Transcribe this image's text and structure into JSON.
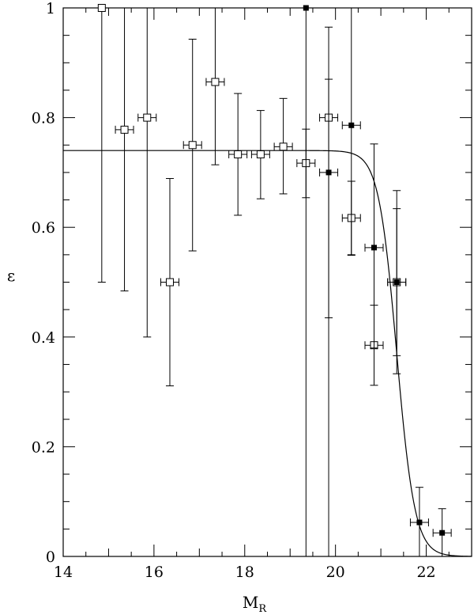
{
  "chart_data": {
    "type": "scatter",
    "title": "",
    "xlabel": "M",
    "xlabel_sub": "R",
    "ylabel": "ε",
    "xlim": [
      14,
      23
    ],
    "ylim": [
      0,
      1
    ],
    "xticks_major": [
      14,
      16,
      18,
      20,
      22
    ],
    "xtick_labels": [
      "14",
      "16",
      "18",
      "20",
      "22"
    ],
    "yticks_major": [
      0,
      0.2,
      0.4,
      0.6,
      0.8,
      1
    ],
    "ytick_labels": [
      "0",
      "0.2",
      "0.4",
      "0.6",
      "0.8",
      "1"
    ],
    "grid": false,
    "legend": "none",
    "series": [
      {
        "marker": "open-square",
        "points": [
          {
            "x": 14.85,
            "y": 1.0,
            "ylo": 0.5,
            "yhi": 1.0,
            "xerr": 0.0
          },
          {
            "x": 15.35,
            "y": 0.778,
            "ylo": 0.484,
            "yhi": 1.0,
            "xerr": 0.2
          },
          {
            "x": 15.85,
            "y": 0.8,
            "ylo": 0.4,
            "yhi": 1.0,
            "xerr": 0.2
          },
          {
            "x": 16.35,
            "y": 0.5,
            "ylo": 0.311,
            "yhi": 0.689,
            "xerr": 0.2
          },
          {
            "x": 16.85,
            "y": 0.75,
            "ylo": 0.557,
            "yhi": 0.943,
            "xerr": 0.2
          },
          {
            "x": 17.35,
            "y": 0.865,
            "ylo": 0.714,
            "yhi": 1.0,
            "xerr": 0.2
          },
          {
            "x": 17.85,
            "y": 0.733,
            "ylo": 0.622,
            "yhi": 0.844,
            "xerr": 0.2
          },
          {
            "x": 18.35,
            "y": 0.733,
            "ylo": 0.652,
            "yhi": 0.813,
            "xerr": 0.2
          },
          {
            "x": 18.85,
            "y": 0.747,
            "ylo": 0.661,
            "yhi": 0.835,
            "xerr": 0.2
          },
          {
            "x": 19.35,
            "y": 0.717,
            "ylo": 0.654,
            "yhi": 0.779,
            "xerr": 0.2
          },
          {
            "x": 19.85,
            "y": 0.8,
            "ylo": 0.435,
            "yhi": 0.965,
            "xerr": 0.2
          },
          {
            "x": 20.35,
            "y": 0.617,
            "ylo": 0.55,
            "yhi": 0.684,
            "xerr": 0.2
          },
          {
            "x": 20.85,
            "y": 0.385,
            "ylo": 0.312,
            "yhi": 0.458,
            "xerr": 0.2
          },
          {
            "x": 21.35,
            "y": 0.5,
            "ylo": 0.333,
            "yhi": 0.667,
            "xerr": 0.2
          }
        ]
      },
      {
        "marker": "filled-square",
        "points": [
          {
            "x": 19.35,
            "y": 1.0,
            "ylo": 0.0,
            "yhi": 1.0,
            "xerr": 0.0
          },
          {
            "x": 19.85,
            "y": 0.7,
            "ylo": 0.0,
            "yhi": 0.87,
            "xerr": 0.2
          },
          {
            "x": 20.35,
            "y": 0.786,
            "ylo": 0.549,
            "yhi": 1.0,
            "xerr": 0.2
          },
          {
            "x": 20.85,
            "y": 0.563,
            "ylo": 0.38,
            "yhi": 0.752,
            "xerr": 0.2
          },
          {
            "x": 21.35,
            "y": 0.5,
            "ylo": 0.366,
            "yhi": 0.634,
            "xerr": 0.2
          },
          {
            "x": 21.85,
            "y": 0.062,
            "ylo": 0.0,
            "yhi": 0.126,
            "xerr": 0.2
          },
          {
            "x": 22.35,
            "y": 0.043,
            "ylo": 0.0,
            "yhi": 0.087,
            "xerr": 0.2
          }
        ]
      }
    ],
    "fit_curve": {
      "type": "logistic",
      "plateau": 0.74,
      "x0": 21.35,
      "width": 0.2
    }
  }
}
